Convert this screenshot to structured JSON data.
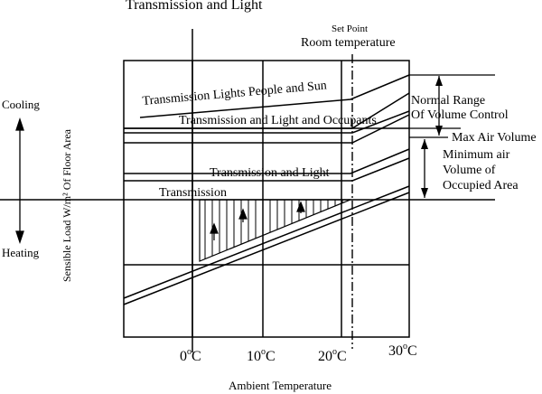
{
  "diagram": {
    "title": "Transmission and Light",
    "set_point": "Set Point",
    "room_temperature": "Room temperature",
    "curve_labels": {
      "top": "Transmission Lights People and Sun",
      "second": "Transmission and Light and Occupants",
      "third": "Transmission and Light",
      "bottom": "Transmission"
    },
    "right_labels": {
      "normal_range_line1": "Normal Range",
      "normal_range_line2": "Of Volume Control",
      "max_air_volume": "Max Air Volume",
      "min_air_line1": "Minimum air",
      "min_air_line2": "Volume of",
      "min_air_line3": "Occupied  Area"
    },
    "left_labels": {
      "cooling": "Cooling",
      "heating": "Heating",
      "y_axis": "Sensible Load W/m² Of Floor Area"
    },
    "x_ticks": [
      {
        "num": "0",
        "deg": "o",
        "unit": "C"
      },
      {
        "num": "10",
        "deg": "o",
        "unit": "C"
      },
      {
        "num": "20",
        "deg": "o",
        "unit": "C"
      },
      {
        "num": "30",
        "deg": "o",
        "unit": "C"
      }
    ],
    "x_axis_label": "Ambient Temperature"
  }
}
